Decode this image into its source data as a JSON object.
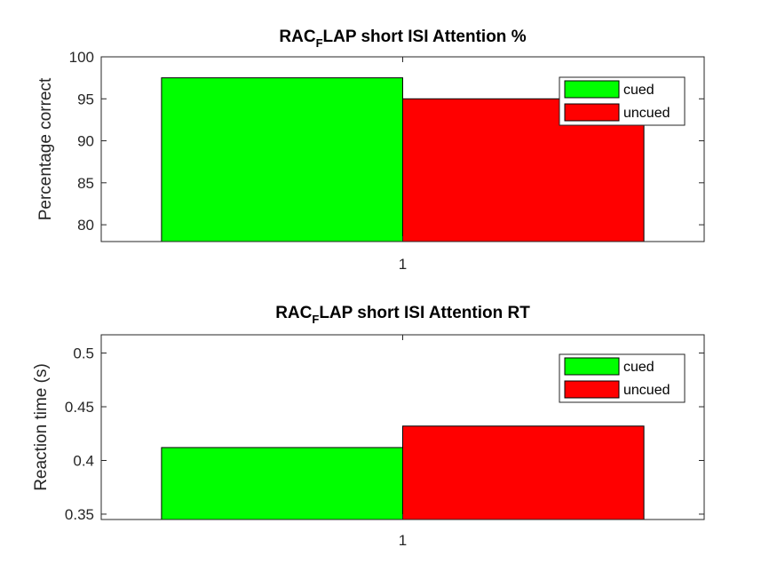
{
  "chart_data": [
    {
      "type": "bar",
      "title_main": "RAC",
      "title_sub": "F",
      "title_rest": "LAP short ISI Attention %",
      "xlabel": "",
      "ylabel": "Percentage correct",
      "categories": [
        "1"
      ],
      "series": [
        {
          "name": "cued",
          "values": [
            97.5
          ],
          "color": "#00ff00"
        },
        {
          "name": "uncued",
          "values": [
            95.0
          ],
          "color": "#ff0000"
        }
      ],
      "ylim": [
        78,
        100
      ],
      "yticks": [
        80,
        85,
        90,
        95,
        100
      ],
      "ytick_labels": [
        "80",
        "85",
        "90",
        "95",
        "100"
      ],
      "grid": false,
      "legend": "top-right"
    },
    {
      "type": "bar",
      "title_main": "RAC",
      "title_sub": "F",
      "title_rest": "LAP short ISI Attention RT",
      "xlabel": "",
      "ylabel": "Reaction time (s)",
      "categories": [
        "1"
      ],
      "series": [
        {
          "name": "cued",
          "values": [
            0.412
          ],
          "color": "#00ff00"
        },
        {
          "name": "uncued",
          "values": [
            0.432
          ],
          "color": "#ff0000"
        }
      ],
      "ylim": [
        0.345,
        0.517
      ],
      "yticks": [
        0.35,
        0.4,
        0.45,
        0.5
      ],
      "ytick_labels": [
        "0.35",
        "0.4",
        "0.45",
        "0.5"
      ],
      "grid": false,
      "legend": "top-right"
    }
  ]
}
